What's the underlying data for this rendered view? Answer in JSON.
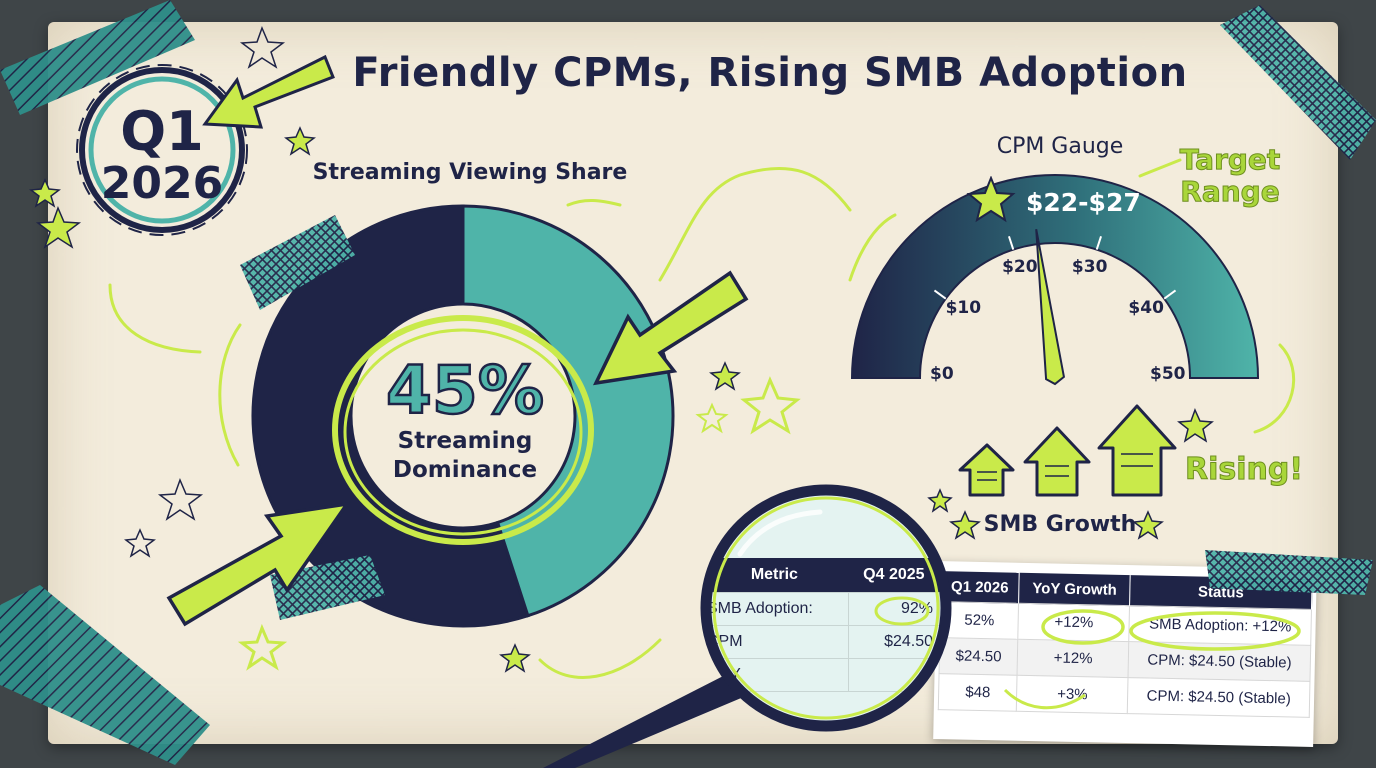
{
  "title": "Friendly CPMs, Rising SMB Adoption",
  "badge": {
    "quarter": "Q1",
    "year": "2026"
  },
  "donut": {
    "title": "Streaming Viewing Share",
    "center_value": "45%",
    "center_label_line1": "Streaming",
    "center_label_line2": "Dominance",
    "streaming_share_percent": 45,
    "colors": {
      "streaming": "#4fb4a9",
      "other": "#1f2447"
    }
  },
  "gauge": {
    "title": "CPM Gauge",
    "range_label": "$22-$27",
    "annotation": "Target Range",
    "ticks": [
      "$0",
      "$10",
      "$20",
      "$30",
      "$40",
      "$50"
    ],
    "min": 0,
    "max": 50,
    "needle_value": 23
  },
  "growth": {
    "label": "SMB Growth",
    "annotation": "Rising!"
  },
  "lens_table": {
    "headers": [
      "Metric",
      "Q4 2025"
    ],
    "rows": [
      [
        "SMB Adoption:",
        "92%"
      ],
      [
        "CPM",
        "$24.50"
      ],
      [
        "AOY",
        ""
      ]
    ]
  },
  "table": {
    "headers": [
      "Q1 2026",
      "YoY Growth",
      "Status"
    ],
    "rows": [
      [
        "52%",
        "+12%",
        "SMB Adoption: +12%"
      ],
      [
        "$24.50",
        "+12%",
        "CPM: $24.50 (Stable)"
      ],
      [
        "$48",
        "+3%",
        "CPM: $24.50 (Stable)"
      ]
    ]
  },
  "colors": {
    "navy": "#1f2447",
    "teal": "#4fb4a9",
    "lime": "#c9ea4a",
    "paper": "#f3ecdc"
  }
}
